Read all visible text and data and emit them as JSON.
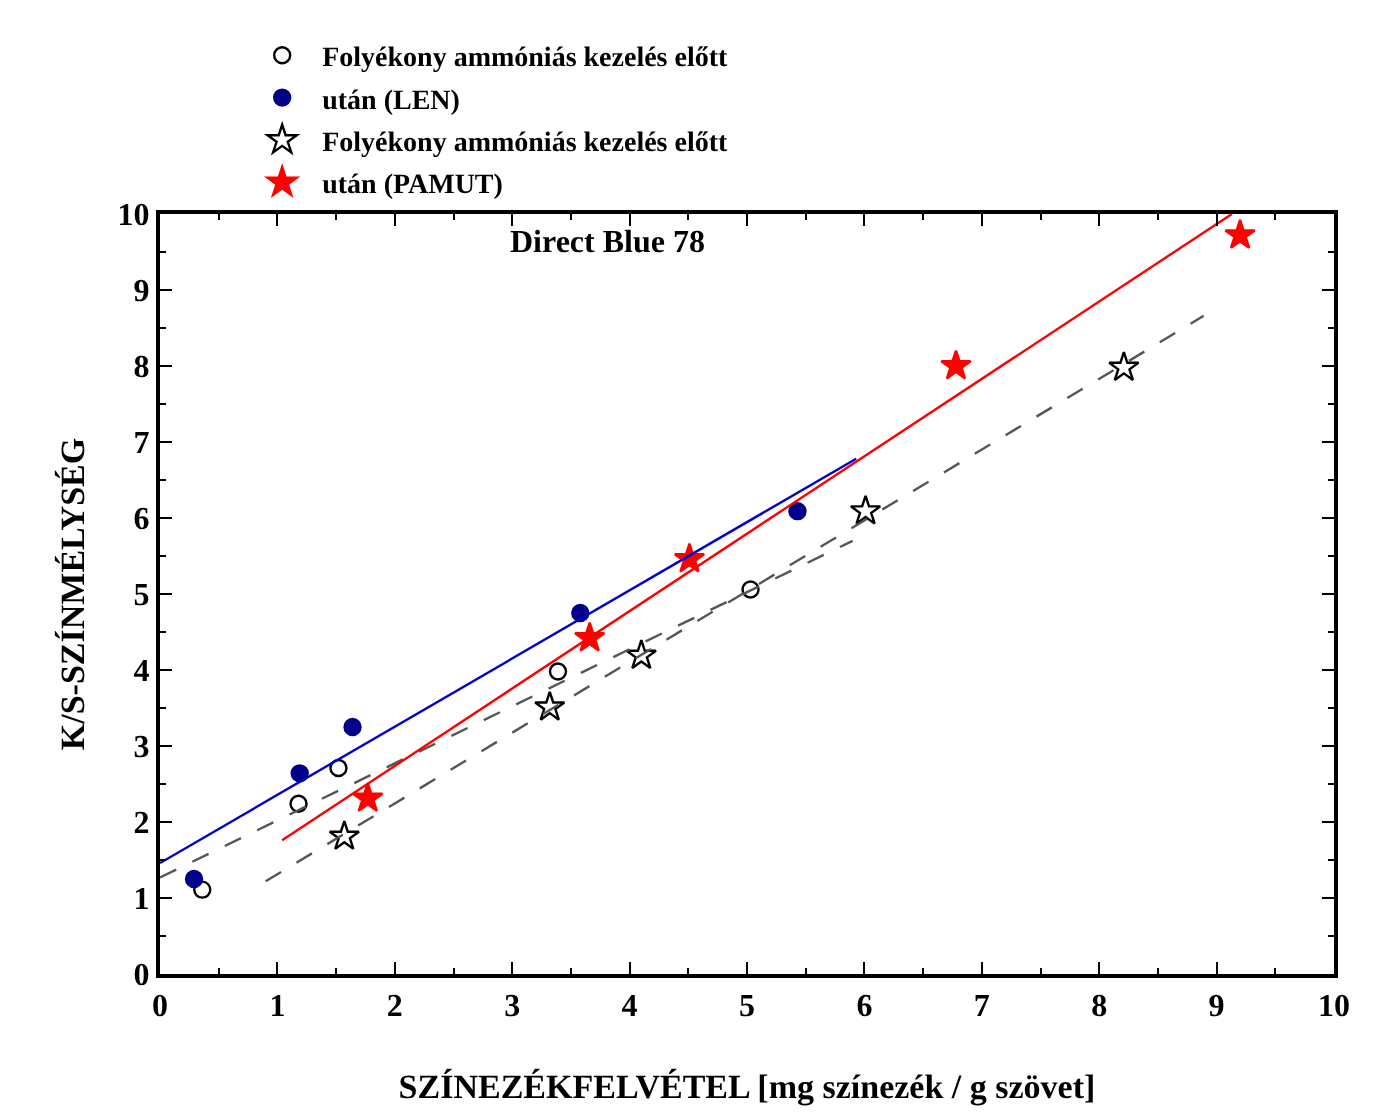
{
  "chart_data": {
    "type": "scatter",
    "xlabel": "SZÍNEZÉKFELVÉTEL [mg színezék / g szövet]",
    "ylabel": "K/S-SZÍNMÉLYSÉG",
    "annotations": [
      "Direct Blue 78"
    ],
    "xlim": [
      0,
      10
    ],
    "xticks": [
      0,
      1,
      2,
      3,
      4,
      5,
      6,
      7,
      8,
      9,
      10
    ],
    "ylim": [
      0,
      10
    ],
    "yticks": [
      0,
      1,
      2,
      3,
      4,
      5,
      6,
      7,
      8,
      9,
      10
    ],
    "grid": false,
    "legend": "top",
    "series": [
      {
        "name": "Folyékony ammóniás kezelés előtt",
        "marker": "circle-open",
        "color": "#000000",
        "x": [
          0.36,
          1.18,
          1.52,
          3.39,
          5.03
        ],
        "values": [
          1.11,
          2.24,
          2.71,
          3.98,
          5.06
        ]
      },
      {
        "name": "után (LEN)",
        "marker": "circle",
        "color": "#00008b",
        "x": [
          0.29,
          1.19,
          1.64,
          3.58,
          5.43
        ],
        "values": [
          1.25,
          2.64,
          3.25,
          4.75,
          6.09
        ]
      },
      {
        "name": "Folyékony ammóniás kezelés előtt",
        "marker": "star-open",
        "color": "#000000",
        "x": [
          1.57,
          3.32,
          4.1,
          6.01,
          8.21
        ],
        "values": [
          1.81,
          3.51,
          4.19,
          6.09,
          7.98
        ]
      },
      {
        "name": "után (PAMUT)",
        "marker": "star",
        "color": "#ff0000",
        "x": [
          1.77,
          3.66,
          4.51,
          6.78,
          9.2
        ],
        "values": [
          2.31,
          4.42,
          5.46,
          8.0,
          9.72
        ]
      },
      {
        "type": "line",
        "marker": "none",
        "line_style": "dashed",
        "color": "#555555",
        "x": [
          0,
          5.9
        ],
        "values": [
          1.27,
          5.7
        ]
      },
      {
        "type": "line",
        "marker": "none",
        "line_style": "solid",
        "color": "#0000cc",
        "x": [
          0,
          5.93
        ],
        "values": [
          1.46,
          6.78
        ]
      },
      {
        "type": "line",
        "marker": "none",
        "line_style": "dashed",
        "color": "#555555",
        "x": [
          0.9,
          8.89
        ],
        "values": [
          1.22,
          8.66
        ]
      },
      {
        "type": "line",
        "marker": "none",
        "line_style": "solid",
        "color": "#ff0000",
        "x": [
          1.04,
          9.13
        ],
        "values": [
          1.76,
          10.0
        ]
      }
    ]
  }
}
